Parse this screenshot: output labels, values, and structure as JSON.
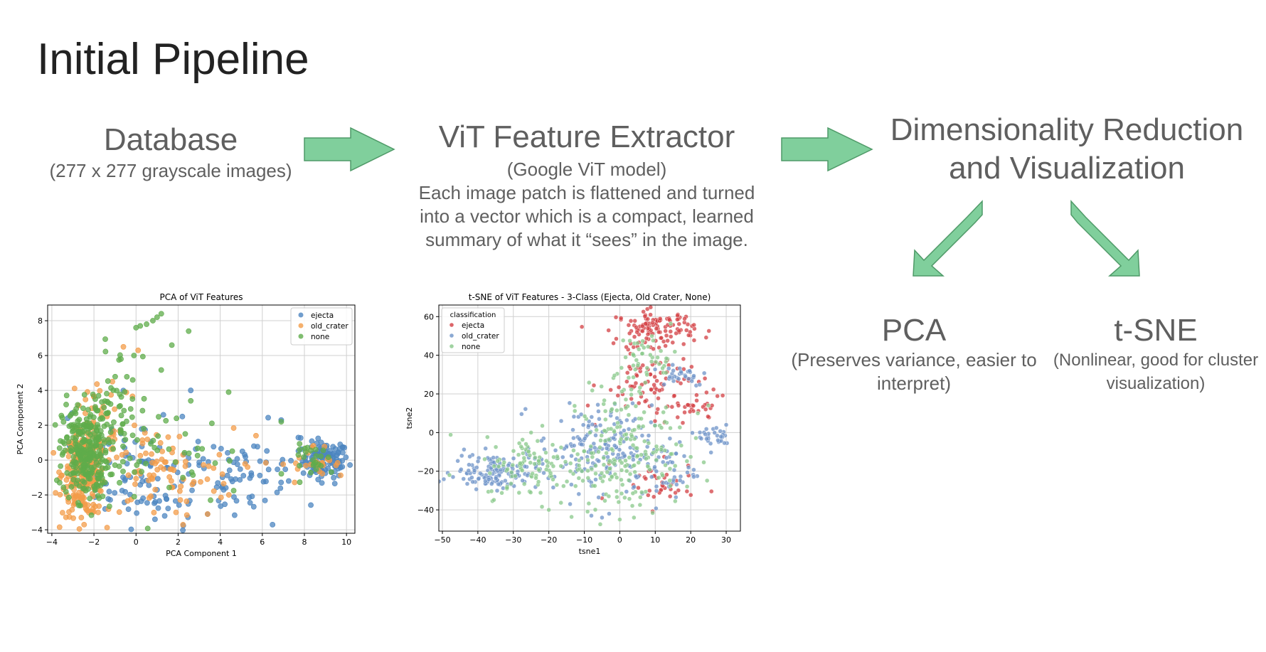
{
  "slide": {
    "title": "Initial Pipeline"
  },
  "stages": {
    "database": {
      "title": "Database",
      "subtitle": "(277 x 277 grayscale images)"
    },
    "extractor": {
      "title": "ViT Feature Extractor",
      "subtitle": "(Google ViT model)",
      "lines": [
        "Each image patch is flattened and turned",
        "into a vector which is a compact, learned",
        "summary of what it “sees” in the image."
      ]
    },
    "reduction": {
      "title_lines": [
        "Dimensionality Reduction",
        "and Visualization"
      ]
    },
    "pca": {
      "title": "PCA",
      "lines": [
        "(Preserves variance, easier to",
        "interpret)"
      ]
    },
    "tsne": {
      "title": "t-SNE",
      "lines": [
        "(Nonlinear, good for cluster",
        "visualization)"
      ]
    }
  },
  "colors": {
    "arrow_fill": "#80cf9c",
    "arrow_stroke": "#4f9a68",
    "ejecta_pca": "#4c85c0",
    "old_crater": "#f39c49",
    "none_pca": "#5fac4b",
    "ejecta_tsne": "#d33f43",
    "old_crater_tsne": "#6e93c8",
    "none_tsne": "#88c88a"
  },
  "chart_data": [
    {
      "type": "scatter",
      "title": "PCA of ViT Features",
      "xlabel": "PCA Component 1",
      "ylabel": "PCA Component 2",
      "xlim": [
        -4.2,
        10.4
      ],
      "ylim": [
        -4.2,
        8.9
      ],
      "xticks": [
        -4,
        -2,
        0,
        2,
        4,
        6,
        8,
        10
      ],
      "yticks": [
        -4,
        -2,
        0,
        2,
        4,
        6,
        8
      ],
      "grid": true,
      "legend": {
        "placement": "top-right",
        "title": ""
      },
      "series": [
        {
          "name": "ejecta",
          "color": "#4c85c0",
          "clusters": [
            {
              "cx": 9.0,
              "cy": 0.0,
              "sx": 0.55,
              "sy": 0.5,
              "n": 110
            },
            {
              "cx": 4.5,
              "cy": -0.8,
              "sx": 2.2,
              "sy": 1.4,
              "n": 90
            },
            {
              "cx": 0.5,
              "cy": -1.2,
              "sx": 1.2,
              "sy": 1.3,
              "n": 60
            },
            {
              "cx": -1.5,
              "cy": 0.5,
              "sx": 1.0,
              "sy": 1.5,
              "n": 25
            }
          ],
          "points": [
            [
              3.4,
              -3.1
            ],
            [
              0.9,
              -3.4
            ],
            [
              2.6,
              4.0
            ],
            [
              1.3,
              2.6
            ],
            [
              6.9,
              2.3
            ],
            [
              9.7,
              0.9
            ],
            [
              5.6,
              0.8
            ],
            [
              2.2,
              2.5
            ]
          ]
        },
        {
          "name": "old_crater",
          "color": "#f39c49",
          "clusters": [
            {
              "cx": -2.5,
              "cy": -0.8,
              "sx": 0.5,
              "sy": 1.2,
              "n": 260
            },
            {
              "cx": 1.2,
              "cy": -0.8,
              "sx": 1.7,
              "sy": 1.3,
              "n": 80
            },
            {
              "cx": -1.5,
              "cy": 2.5,
              "sx": 0.9,
              "sy": 1.5,
              "n": 40
            },
            {
              "cx": 8.5,
              "cy": -0.3,
              "sx": 0.8,
              "sy": 0.6,
              "n": 25
            }
          ],
          "points": [
            [
              -2.6,
              -3.3
            ],
            [
              -1.8,
              -3.0
            ],
            [
              0.1,
              6.3
            ],
            [
              -0.6,
              6.5
            ],
            [
              3.4,
              -3.1
            ],
            [
              1.9,
              -3.0
            ],
            [
              5.3,
              -0.4
            ],
            [
              5.7,
              1.4
            ]
          ]
        },
        {
          "name": "none",
          "color": "#5fac4b",
          "clusters": [
            {
              "cx": -2.4,
              "cy": 0.5,
              "sx": 0.55,
              "sy": 1.4,
              "n": 260
            },
            {
              "cx": -0.9,
              "cy": 3.0,
              "sx": 0.8,
              "sy": 1.8,
              "n": 60
            },
            {
              "cx": 1.5,
              "cy": 0.0,
              "sx": 1.8,
              "sy": 1.5,
              "n": 40
            },
            {
              "cx": 8.6,
              "cy": 0.0,
              "sx": 0.6,
              "sy": 0.45,
              "n": 25
            }
          ],
          "points": [
            [
              0.2,
              7.7
            ],
            [
              0.0,
              7.6
            ],
            [
              0.5,
              7.8
            ],
            [
              1.0,
              8.2
            ],
            [
              1.2,
              8.4
            ],
            [
              0.8,
              8.0
            ],
            [
              2.5,
              7.4
            ],
            [
              1.7,
              6.6
            ],
            [
              4.4,
              3.9
            ],
            [
              6.9,
              2.2
            ],
            [
              2.6,
              3.4
            ],
            [
              -3.5,
              0.3
            ]
          ]
        }
      ]
    },
    {
      "type": "scatter",
      "title": "t-SNE of ViT Features - 3-Class (Ejecta, Old Crater, None)",
      "xlabel": "tsne1",
      "ylabel": "tsne2",
      "xlim": [
        -51,
        34
      ],
      "ylim": [
        -51,
        66
      ],
      "xticks": [
        -50,
        -40,
        -30,
        -20,
        -10,
        0,
        10,
        20,
        30
      ],
      "yticks": [
        -40,
        -20,
        0,
        20,
        40,
        60
      ],
      "grid": true,
      "legend": {
        "placement": "top-left",
        "title": "classification"
      },
      "series": [
        {
          "name": "ejecta",
          "color": "#d33f43",
          "clusters": [
            {
              "cx": 10,
              "cy": 54,
              "sx": 5.5,
              "sy": 4.5,
              "n": 120
            },
            {
              "cx": 10,
              "cy": 25,
              "sx": 7,
              "sy": 8,
              "n": 80
            },
            {
              "cx": 21,
              "cy": 12,
              "sx": 4,
              "sy": 3,
              "n": 25
            },
            {
              "cx": 11,
              "cy": -28,
              "sx": 5,
              "sy": 6,
              "n": 35
            }
          ],
          "points": [
            [
              -9,
              14
            ],
            [
              -7,
              4
            ],
            [
              -3,
              -16
            ],
            [
              26,
              14
            ],
            [
              -5,
              -34
            ],
            [
              24,
              28
            ]
          ]
        },
        {
          "name": "old_crater",
          "color": "#6e93c8",
          "clusters": [
            {
              "cx": -35,
              "cy": -20,
              "sx": 6,
              "sy": 4.5,
              "n": 130
            },
            {
              "cx": -7,
              "cy": -8,
              "sx": 8,
              "sy": 11,
              "n": 170
            },
            {
              "cx": 12,
              "cy": -20,
              "sx": 5,
              "sy": 8,
              "n": 50
            },
            {
              "cx": 27,
              "cy": -2,
              "sx": 2.5,
              "sy": 3.5,
              "n": 30
            },
            {
              "cx": 17,
              "cy": 30,
              "sx": 4,
              "sy": 3,
              "n": 30
            }
          ],
          "points": [
            [
              -8,
              -43
            ],
            [
              -5,
              -44
            ],
            [
              -3,
              -42
            ],
            [
              -47,
              -23
            ],
            [
              -14,
              -37
            ],
            [
              30,
              4
            ]
          ]
        },
        {
          "name": "none",
          "color": "#88c88a",
          "clusters": [
            {
              "cx": -24,
              "cy": -18,
              "sx": 7,
              "sy": 8,
              "n": 100
            },
            {
              "cx": 0,
              "cy": -15,
              "sx": 9,
              "sy": 12,
              "n": 150
            },
            {
              "cx": 8,
              "cy": 40,
              "sx": 4,
              "sy": 6,
              "n": 40
            },
            {
              "cx": 2,
              "cy": 10,
              "sx": 6,
              "sy": 12,
              "n": 60
            }
          ],
          "points": [
            [
              -48,
              -22
            ],
            [
              0,
              -45
            ],
            [
              4,
              -44
            ],
            [
              -20,
              -40
            ],
            [
              22,
              10
            ],
            [
              25,
              14
            ],
            [
              -25,
              0
            ]
          ]
        }
      ]
    }
  ]
}
